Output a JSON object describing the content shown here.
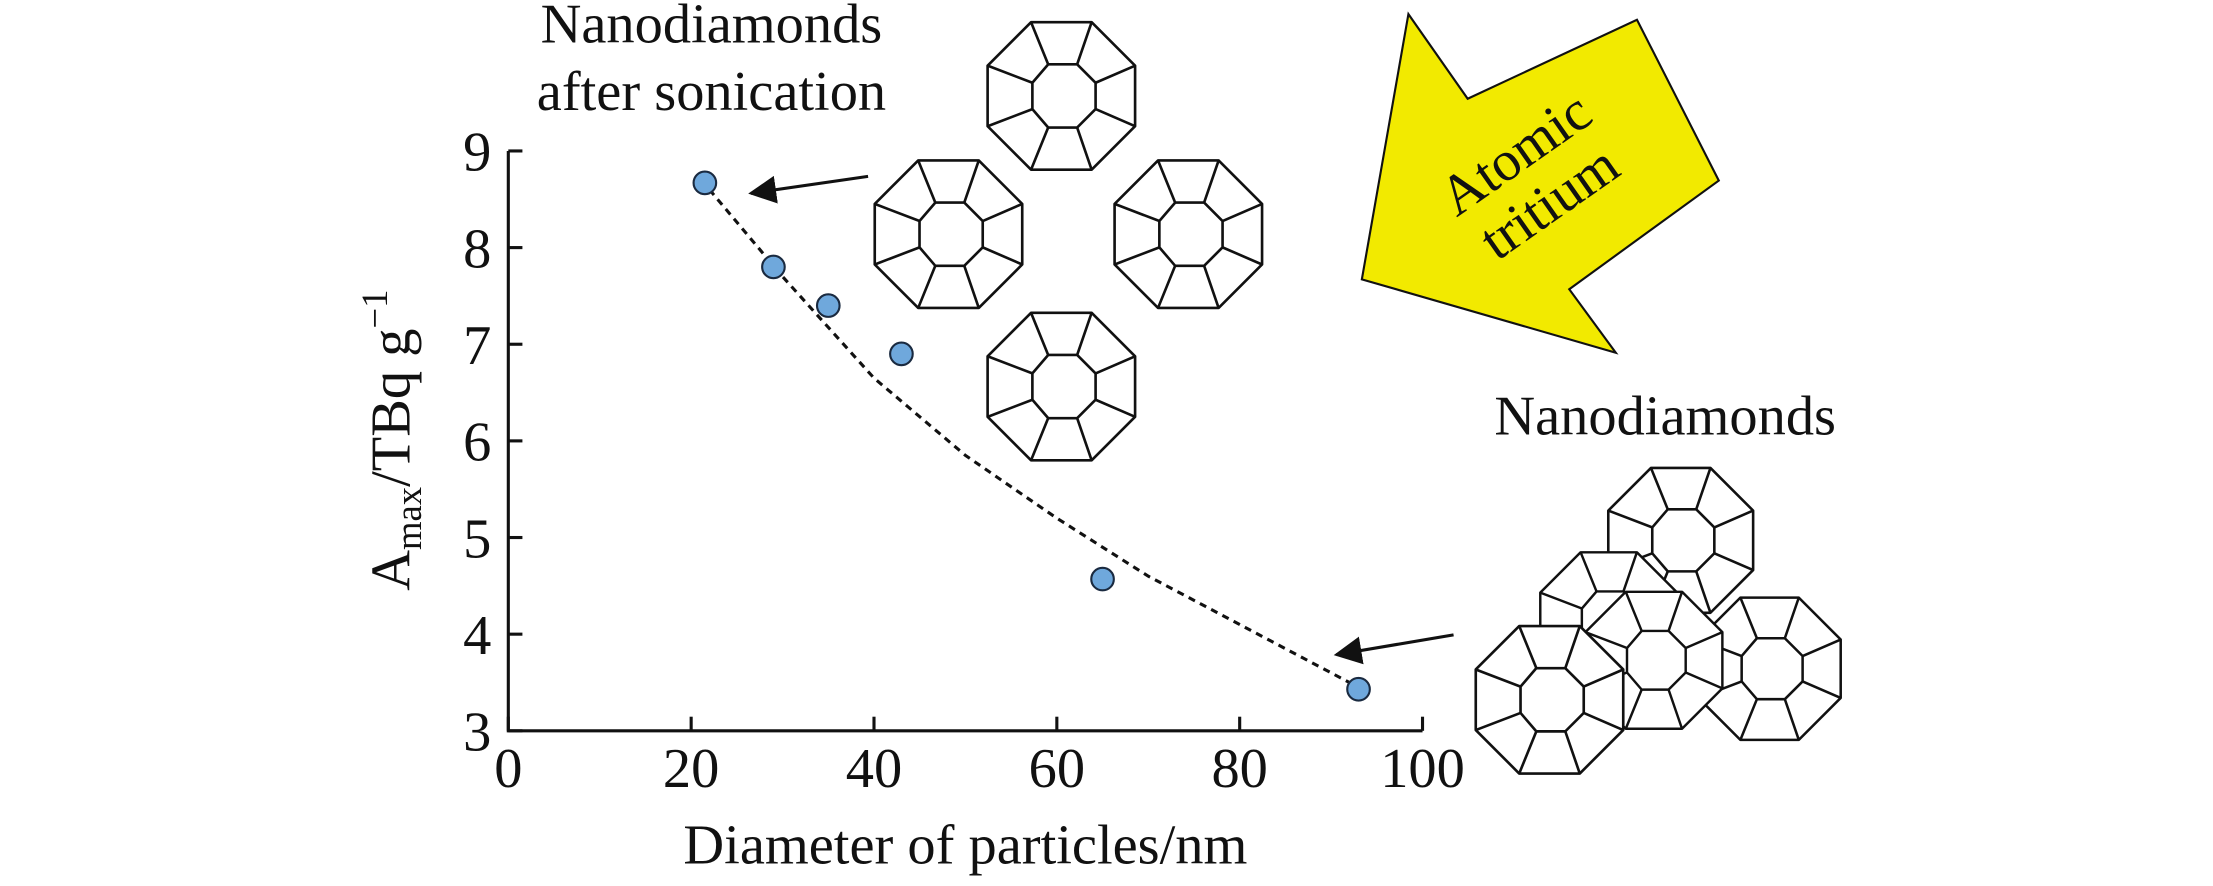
{
  "chart_data": {
    "type": "scatter",
    "x": [
      21.5,
      29,
      35,
      43,
      65,
      93
    ],
    "values": [
      8.67,
      7.8,
      7.4,
      6.9,
      4.57,
      3.43
    ],
    "color": "#6fa8dc",
    "trend": {
      "x": [
        22,
        30,
        40,
        50,
        60,
        70,
        80,
        93
      ],
      "values": [
        8.6,
        7.7,
        6.65,
        5.85,
        5.2,
        4.6,
        4.1,
        3.45
      ],
      "color": "#111111",
      "dashed": true
    },
    "xlim": [
      0,
      100
    ],
    "xticks": [
      0,
      20,
      40,
      60,
      80,
      100
    ],
    "ylim": [
      3,
      9
    ],
    "yticks": [
      3,
      4,
      5,
      6,
      7,
      8,
      9
    ],
    "xlabel": "Diameter of particles/nm",
    "ylabel": [
      "A",
      "max",
      "/TBq g",
      "−1"
    ],
    "annotations": [
      "Nanodiamonds",
      "after sonication",
      "Atomic",
      "tritium",
      "Nanodiamonds"
    ],
    "arrow_color": "#f2ea00"
  }
}
